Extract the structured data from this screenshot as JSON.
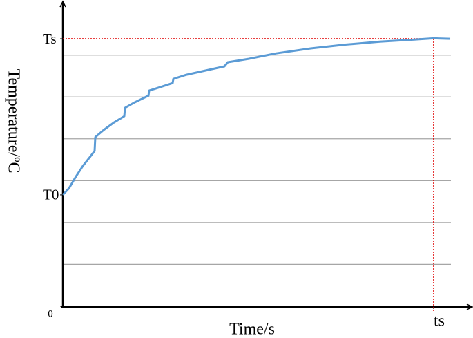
{
  "chart_data": {
    "type": "line",
    "y_axis_label": "Temperature/ºC",
    "x_axis_label": "Time/s",
    "x": [
      0,
      1.52,
      3.2,
      4.88,
      6.57,
      7.74,
      7.91,
      9.93,
      12.46,
      14.98,
      15.15,
      17.51,
      20.88,
      21.04,
      24.24,
      26.77,
      26.94,
      30.13,
      35.19,
      39.39,
      40.24,
      45.29,
      52.02,
      60.44,
      68.86,
      77.27,
      85.69,
      90.4,
      94.44
    ],
    "series": [
      {
        "color": "#5b9bd5",
        "values": [
          2.66,
          2.82,
          3.1,
          3.35,
          3.56,
          3.71,
          4.04,
          4.21,
          4.39,
          4.54,
          4.74,
          4.87,
          5.03,
          5.15,
          5.25,
          5.33,
          5.43,
          5.53,
          5.64,
          5.73,
          5.83,
          5.91,
          6.04,
          6.16,
          6.25,
          6.32,
          6.37,
          6.4,
          6.39
        ]
      }
    ],
    "xlim": [
      0,
      100
    ],
    "ylim": [
      0,
      7.2
    ],
    "yticks": [
      0,
      {
        "value": 2.66,
        "label": "T0"
      },
      {
        "value": 6.39,
        "label": "Ts"
      }
    ],
    "xticks": [
      {
        "value": 90.4,
        "label": "ts"
      }
    ],
    "grid_lines": [
      1,
      2,
      3,
      4,
      5,
      6
    ],
    "guide_color": "#e00000"
  }
}
